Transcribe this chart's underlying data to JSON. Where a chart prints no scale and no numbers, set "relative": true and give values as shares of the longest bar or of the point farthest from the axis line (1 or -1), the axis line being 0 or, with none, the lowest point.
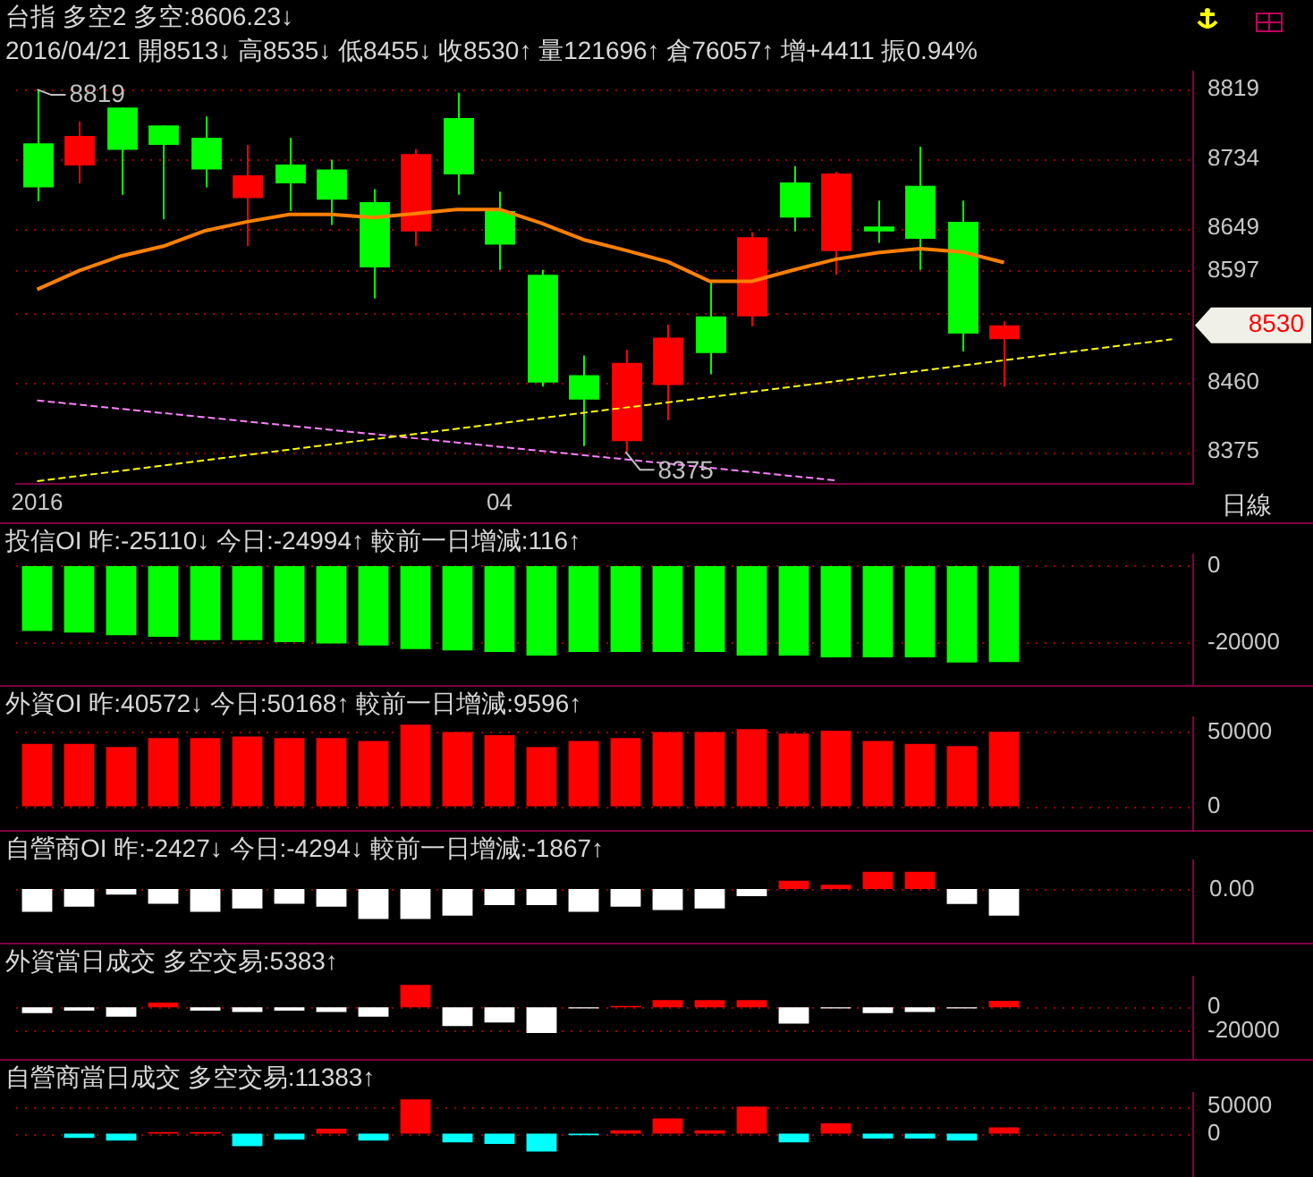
{
  "chart_data": [
    {
      "type": "candlestick",
      "title": "台指 多空2 多空:8606.23↓",
      "subtitle": "2016/04/21 開8513↓ 高8535↓ 低8455↓ 收8530↑ 量121696↑ 倉76057↑ 增+4411 振0.94%",
      "categories": [
        "2016",
        null,
        null,
        null,
        null,
        null,
        null,
        null,
        null,
        null,
        null,
        "04",
        null,
        null,
        null,
        null,
        null,
        null,
        null,
        null,
        null,
        null,
        null,
        null,
        null,
        null,
        null,
        null
      ],
      "ohlc": [
        [
          8753,
          8819,
          8682,
          8699
        ],
        [
          8726,
          8780,
          8704,
          8762
        ],
        [
          8797,
          8797,
          8690,
          8745
        ],
        [
          8775,
          8775,
          8660,
          8751
        ],
        [
          8760,
          8786,
          8699,
          8721
        ],
        [
          8686,
          8751,
          8627,
          8714
        ],
        [
          8727,
          8760,
          8670,
          8704
        ],
        [
          8721,
          8733,
          8653,
          8684
        ],
        [
          8681,
          8697,
          8563,
          8601
        ],
        [
          8645,
          8746,
          8627,
          8740
        ],
        [
          8784,
          8815,
          8690,
          8715
        ],
        [
          8670,
          8694,
          8598,
          8629
        ],
        [
          8592,
          8598,
          8455,
          8460
        ],
        [
          8469,
          8493,
          8382,
          8439
        ],
        [
          8388,
          8500,
          8375,
          8484
        ],
        [
          8457,
          8531,
          8414,
          8515
        ],
        [
          8541,
          8584,
          8470,
          8496
        ],
        [
          8541,
          8644,
          8529,
          8638
        ],
        [
          8705,
          8725,
          8645,
          8662
        ],
        [
          8621,
          8718,
          8592,
          8716
        ],
        [
          8651,
          8683,
          8631,
          8645
        ],
        [
          8701,
          8749,
          8598,
          8636
        ],
        [
          8657,
          8683,
          8498,
          8520
        ],
        [
          8513,
          8535,
          8455,
          8530
        ],
        null,
        null,
        null,
        null
      ],
      "colors": [
        "#00ff00",
        "#ff0000",
        "#00ff00",
        "#00ff00",
        "#00ff00",
        "#ff0000",
        "#00ff00",
        "#00ff00",
        "#00ff00",
        "#ff0000",
        "#00ff00",
        "#00ff00",
        "#00ff00",
        "#00ff00",
        "#ff0000",
        "#ff0000",
        "#00ff00",
        "#ff0000",
        "#00ff00",
        "#ff0000",
        "#00ff00",
        "#00ff00",
        "#00ff00",
        "#ff0000",
        null,
        null,
        null,
        null
      ],
      "series": [
        {
          "type": "line",
          "color": "#ff8000",
          "values": [
            8574,
            8597,
            8615,
            8627,
            8646,
            8657,
            8666,
            8666,
            8662,
            8667,
            8672,
            8672,
            8655,
            8635,
            8622,
            8608,
            8584,
            8584,
            8598,
            8611,
            8619,
            8624,
            8620,
            8607,
            null,
            null,
            null,
            null
          ]
        },
        {
          "type": "line",
          "color": "#ffff00",
          "line_style": "dashed",
          "values": [
            8339,
            null,
            null,
            null,
            null,
            null,
            null,
            null,
            null,
            null,
            null,
            null,
            null,
            null,
            null,
            null,
            null,
            null,
            null,
            null,
            null,
            null,
            null,
            null,
            null,
            null,
            null,
            8513
          ]
        },
        {
          "type": "line",
          "color": "#ff80ff",
          "line_style": "dashed",
          "values": [
            8438,
            null,
            null,
            null,
            null,
            null,
            null,
            null,
            null,
            null,
            null,
            null,
            null,
            null,
            null,
            null,
            null,
            null,
            null,
            8340,
            null,
            null,
            null,
            null,
            null,
            null,
            null,
            null
          ]
        }
      ],
      "ylim": [
        8336,
        8841
      ],
      "yticks": [
        8819,
        8734,
        8649,
        8597,
        {
          "value": 8545,
          "label": null
        },
        8460,
        8375
      ],
      "grid": "y",
      "annotations": [
        {
          "text": "8819",
          "x": "2016",
          "y": 8819
        },
        "8375",
        "8530",
        "日線"
      ]
    },
    {
      "type": "bar",
      "title": "投信OI 昨:-25110↓ 今日:-24994↑ 較前一日增減:116↑",
      "categories": [
        "2016",
        null,
        null,
        null,
        null,
        null,
        null,
        null,
        null,
        null,
        null,
        "04",
        null,
        null,
        null,
        null,
        null,
        null,
        null,
        null,
        null,
        null,
        null,
        null,
        null,
        null,
        null,
        null
      ],
      "values": [
        -16900,
        -17300,
        -18000,
        -18400,
        -19300,
        -19300,
        -19800,
        -20200,
        -20700,
        -21600,
        -22000,
        -22400,
        -23300,
        -22400,
        -22400,
        -22400,
        -22400,
        -23300,
        -23300,
        -23800,
        -23800,
        -23800,
        -25110,
        -24994,
        null,
        null,
        null,
        null
      ],
      "color": "#00ff00",
      "ylim": [
        -31000,
        3000
      ],
      "yticks": [
        0,
        -20000
      ],
      "grid": "y",
      "tick_labels": "y"
    },
    {
      "type": "bar",
      "title": "外資OI 昨:40572↓ 今日:50168↑ 較前一日增減:9596↑",
      "categories": [
        "2016",
        null,
        null,
        null,
        null,
        null,
        null,
        null,
        null,
        null,
        null,
        "04",
        null,
        null,
        null,
        null,
        null,
        null,
        null,
        null,
        null,
        null,
        null,
        null,
        null,
        null,
        null,
        null
      ],
      "values": [
        42000,
        42000,
        40000,
        46000,
        46000,
        47000,
        46000,
        46000,
        44000,
        55000,
        50000,
        48000,
        40000,
        44000,
        46000,
        50000,
        50000,
        52000,
        49000,
        51000,
        44000,
        42000,
        40572,
        50168,
        null,
        null,
        null,
        null
      ],
      "color": "#ff0000",
      "ylim": [
        -16000,
        60000
      ],
      "yticks": [
        50000,
        0
      ],
      "grid": "y",
      "tick_labels": "y"
    },
    {
      "type": "bar",
      "title": "自營商OI 昨:-2427↓ 今日:-4294↓ 較前一日增減:-1867↑",
      "categories": [
        "2016",
        null,
        null,
        null,
        null,
        null,
        null,
        null,
        null,
        null,
        null,
        "04",
        null,
        null,
        null,
        null,
        null,
        null,
        null,
        null,
        null,
        null,
        null,
        null,
        null,
        null,
        null,
        null
      ],
      "relative": true,
      "values": [
        -0.76,
        -0.59,
        -0.19,
        -0.49,
        -0.76,
        -0.65,
        -0.49,
        -0.59,
        -1,
        -1,
        -0.89,
        -0.54,
        -0.54,
        -0.76,
        -0.59,
        -0.7,
        -0.65,
        -0.24,
        0.27,
        0.14,
        0.57,
        0.57,
        -0.5,
        -0.89,
        null,
        null,
        null,
        null
      ],
      "colors": [
        "#ffffff",
        "#ffffff",
        "#ffffff",
        "#ffffff",
        "#ffffff",
        "#ffffff",
        "#ffffff",
        "#ffffff",
        "#ffffff",
        "#ffffff",
        "#ffffff",
        "#ffffff",
        "#ffffff",
        "#ffffff",
        "#ffffff",
        "#ffffff",
        "#ffffff",
        "#ffffff",
        "#ff0000",
        "#ff0000",
        "#ff0000",
        "#ff0000",
        "#ffffff",
        "#ffffff",
        null,
        null,
        null,
        null
      ],
      "ref_lines": [
        {
          "axis": "y",
          "value": 0,
          "label": "0.00",
          "color": "#a00000",
          "line_style": "dotted"
        }
      ],
      "tick_labels": "y"
    },
    {
      "type": "bar",
      "title": "外資當日成交 多空交易:5383↑",
      "categories": [
        "2016",
        null,
        null,
        null,
        null,
        null,
        null,
        null,
        null,
        null,
        null,
        "04",
        null,
        null,
        null,
        null,
        null,
        null,
        null,
        null,
        null,
        null,
        null,
        null,
        null,
        null,
        null,
        null
      ],
      "values": [
        -5000,
        -3000,
        -8000,
        4000,
        -3000,
        -4000,
        -3000,
        -4000,
        -8000,
        19000,
        -16000,
        -13000,
        -22000,
        -1000,
        1000,
        6000,
        6000,
        6000,
        -14000,
        -1000,
        -5000,
        -4000,
        -1000,
        5383,
        null,
        null,
        null,
        null
      ],
      "colors": [
        "#ffffff",
        "#ffffff",
        "#ffffff",
        "#ff0000",
        "#ffffff",
        "#ffffff",
        "#ffffff",
        "#ffffff",
        "#ffffff",
        "#ff0000",
        "#ffffff",
        "#ffffff",
        "#ffffff",
        "#ffffff",
        "#ff0000",
        "#ff0000",
        "#ff0000",
        "#ff0000",
        "#ffffff",
        "#ffffff",
        "#ffffff",
        "#ffffff",
        "#ffffff",
        "#ff0000",
        null,
        null,
        null,
        null
      ],
      "ylim": [
        -44000,
        26000
      ],
      "yticks": [
        0,
        -20000
      ],
      "grid": "y",
      "tick_labels": "y"
    },
    {
      "type": "bar",
      "title": "自營商當日成交 多空交易:11383↑",
      "categories": [
        "2016",
        null,
        null,
        null,
        null,
        null,
        null,
        null,
        null,
        null,
        null,
        "04",
        null,
        null,
        null,
        null,
        null,
        null,
        null,
        null,
        null,
        null,
        null,
        null,
        null,
        null,
        null,
        null
      ],
      "values": [
        0,
        -8000,
        -13000,
        3000,
        3000,
        -23000,
        -11000,
        9000,
        -13000,
        63000,
        -16000,
        -19000,
        -33000,
        -3000,
        6000,
        28000,
        6000,
        50000,
        -16000,
        19000,
        -9000,
        -9000,
        -13000,
        11383,
        null,
        null,
        null,
        null
      ],
      "colors": [
        "#00ffff",
        "#00ffff",
        "#00ffff",
        "#ff0000",
        "#ff0000",
        "#00ffff",
        "#00ffff",
        "#ff0000",
        "#00ffff",
        "#ff0000",
        "#00ffff",
        "#00ffff",
        "#00ffff",
        "#00ffff",
        "#ff0000",
        "#ff0000",
        "#ff0000",
        "#ff0000",
        "#00ffff",
        "#ff0000",
        "#00ffff",
        "#00ffff",
        "#00ffff",
        "#ff0000",
        null,
        null,
        null,
        null
      ],
      "ylim": [
        -80000,
        75000
      ],
      "yticks": [
        50000,
        0
      ],
      "grid": "y",
      "tick_labels": "y"
    }
  ]
}
